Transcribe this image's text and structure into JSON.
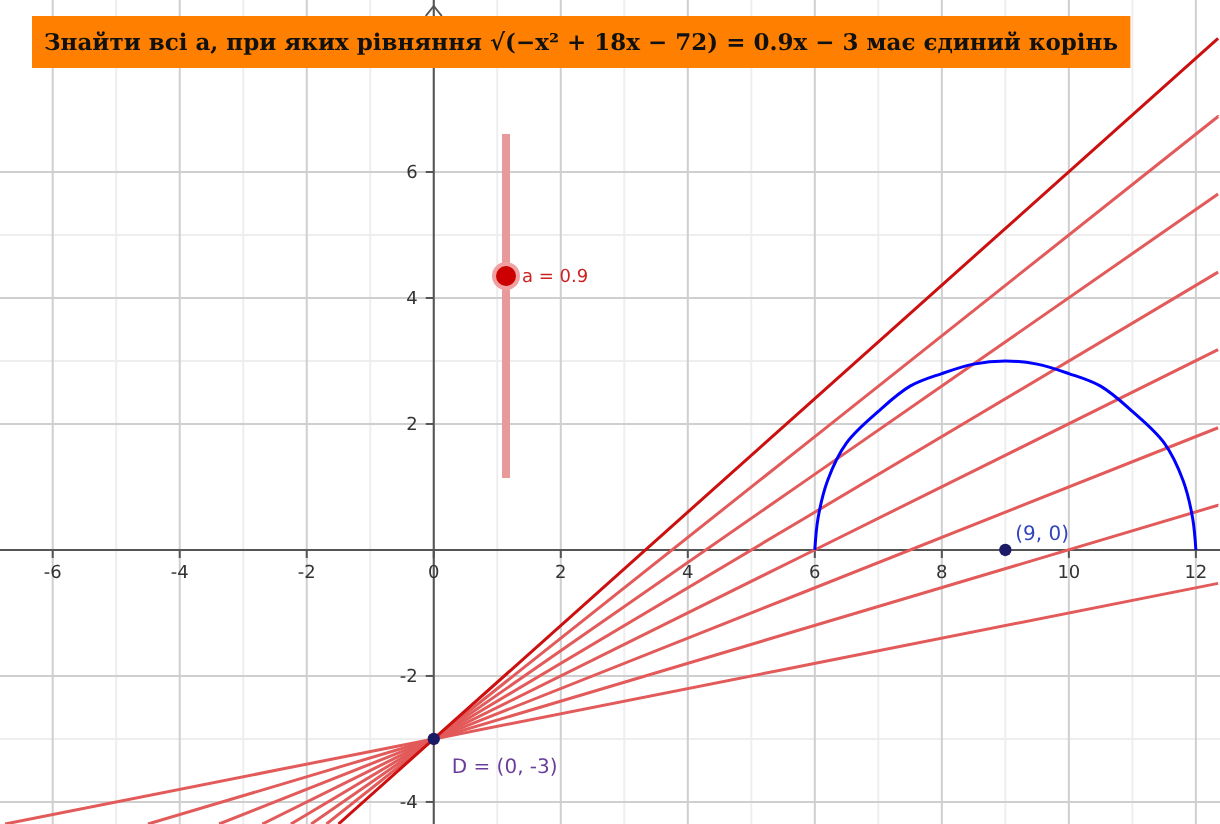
{
  "chart_data": {
    "type": "line",
    "title": "Знайти всі a, при яких рівняння √(−x² + 18x − 72) = 0.9x − 3 має єдиний корінь",
    "xlim": [
      -6.83,
      12.38
    ],
    "ylim": [
      -4.35,
      8.73
    ],
    "xticks": [
      -6,
      -4,
      -2,
      0,
      2,
      4,
      6,
      8,
      10,
      12
    ],
    "yticks": [
      -4,
      -2,
      2,
      4,
      6
    ],
    "grid": true,
    "series": [
      {
        "color": "#e35a5a",
        "x": [
          -6.75,
          0,
          12.35
        ],
        "values": [
          -4.35,
          -3,
          -0.53
        ]
      },
      {
        "color": "#e35a5a",
        "x": [
          -4.5,
          0,
          12.35
        ],
        "values": [
          -4.35,
          -3,
          0.71
        ]
      },
      {
        "color": "#e35a5a",
        "x": [
          -3.38,
          0,
          12.35
        ],
        "values": [
          -4.35,
          -3,
          1.94
        ]
      },
      {
        "color": "#e35a5a",
        "x": [
          -2.7,
          0,
          12.35
        ],
        "values": [
          -4.35,
          -3,
          3.18
        ]
      },
      {
        "color": "#e35a5a",
        "x": [
          -2.25,
          0,
          12.35
        ],
        "values": [
          -4.35,
          -3,
          4.41
        ]
      },
      {
        "color": "#e35a5a",
        "x": [
          -1.93,
          0,
          12.35
        ],
        "values": [
          -4.35,
          -3,
          5.65
        ]
      },
      {
        "color": "#e35a5a",
        "x": [
          -1.69,
          0,
          12.35
        ],
        "values": [
          -4.35,
          -3,
          6.88
        ]
      },
      {
        "color": "#cc1010",
        "x": [
          -1.5,
          0,
          12.35
        ],
        "values": [
          -4.35,
          -3,
          8.12
        ]
      },
      {
        "color": "#0000ff",
        "x": [
          6,
          6.05,
          6.2,
          6.5,
          7,
          7.5,
          8,
          8.5,
          9,
          9.5,
          10,
          10.5,
          11,
          11.5,
          11.8,
          11.95,
          12
        ],
        "values": [
          0,
          0.5,
          1.1,
          1.7,
          2.2,
          2.6,
          2.8,
          2.95,
          3,
          2.95,
          2.8,
          2.6,
          2.2,
          1.7,
          1.1,
          0.5,
          0
        ]
      },
      {
        "type": "scatter",
        "color": "#1a1a66",
        "marker": "circle",
        "x": [
          0,
          9
        ],
        "values": [
          -3,
          0
        ]
      }
    ],
    "annotations": [
      {
        "text": "D = (0, -3)",
        "x": 0,
        "y": -3
      },
      {
        "text": "(9, 0)",
        "x": 9,
        "y": 0
      },
      "a = 0.9"
    ]
  }
}
